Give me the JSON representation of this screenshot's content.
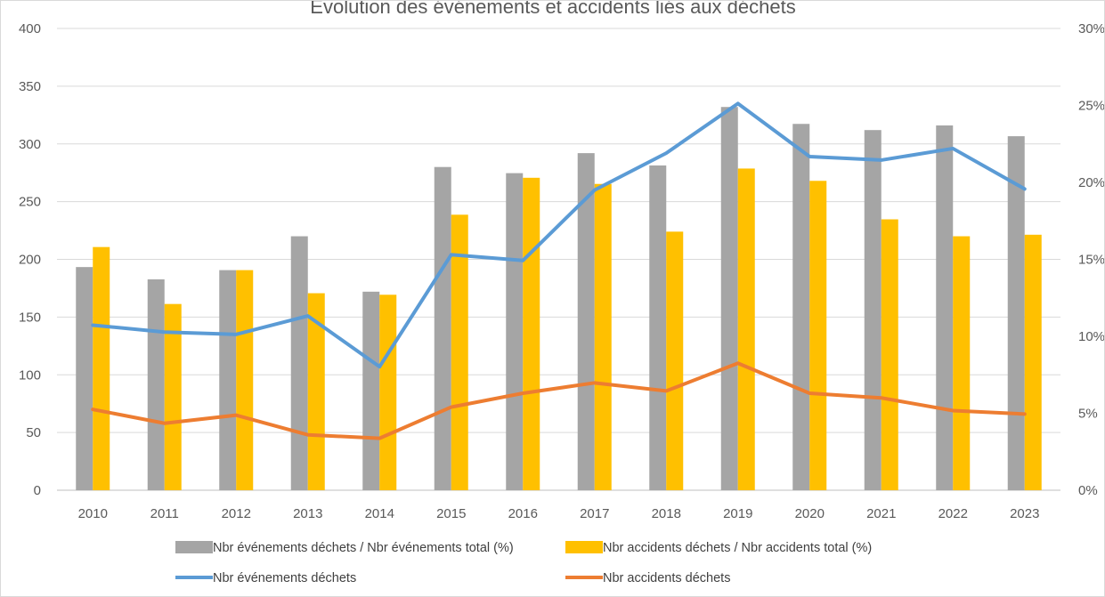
{
  "chart_data": {
    "type": "bar",
    "title": "Évolution des événements et accidents liés aux déchets",
    "categories": [
      "2010",
      "2011",
      "2012",
      "2013",
      "2014",
      "2015",
      "2016",
      "2017",
      "2018",
      "2019",
      "2020",
      "2021",
      "2022",
      "2023"
    ],
    "ylim": [
      0,
      400
    ],
    "y_ticks": [
      "0",
      "50",
      "100",
      "150",
      "200",
      "250",
      "300",
      "350",
      "400"
    ],
    "y2lim": [
      0,
      0.3
    ],
    "y2_ticks": [
      "0%",
      "5%",
      "10%",
      "15%",
      "20%",
      "25%",
      "30%"
    ],
    "grid": true,
    "legend_position": "bottom",
    "series": [
      {
        "name": "Nbr événements déchets / Nbr événements total (%)",
        "type": "bar",
        "axis": "right",
        "color": "#a5a5a5",
        "values": [
          0.145,
          0.137,
          0.143,
          0.165,
          0.129,
          0.21,
          0.206,
          0.219,
          0.211,
          0.249,
          0.238,
          0.234,
          0.237,
          0.23
        ]
      },
      {
        "name": "Nbr accidents déchets / Nbr accidents total (%)",
        "type": "bar",
        "axis": "right",
        "color": "#ffc000",
        "values": [
          0.158,
          0.121,
          0.143,
          0.128,
          0.127,
          0.179,
          0.203,
          0.199,
          0.168,
          0.209,
          0.201,
          0.176,
          0.165,
          0.166
        ]
      },
      {
        "name": "Nbr événements déchets",
        "type": "line",
        "axis": "left",
        "color": "#5b9bd5",
        "values": [
          143,
          137,
          135,
          151,
          107,
          204,
          199,
          260,
          292,
          335,
          289,
          286,
          296,
          261
        ]
      },
      {
        "name": "Nbr accidents déchets",
        "type": "line",
        "axis": "left",
        "color": "#ed7d31",
        "values": [
          70,
          58,
          65,
          48,
          45,
          72,
          84,
          93,
          86,
          110,
          84,
          80,
          69,
          66
        ]
      }
    ]
  }
}
